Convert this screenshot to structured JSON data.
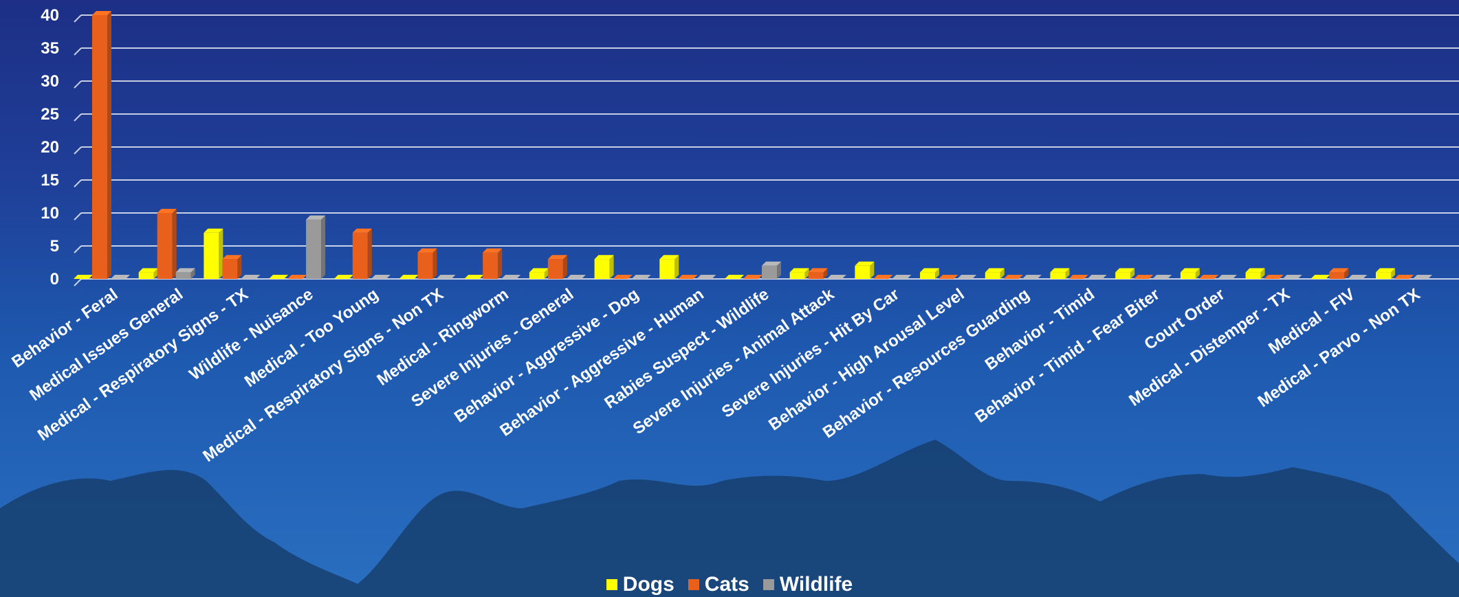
{
  "chart_data": {
    "type": "bar",
    "categories": [
      "Behavior - Feral",
      "Medical Issues General",
      "Medical - Respiratory Signs - TX",
      "Wildlife - Nuisance",
      "Medical - Too Young",
      "Medical - Respiratory Signs - Non TX",
      "Medical - Ringworm",
      "Severe Injuries - General",
      "Behavior - Aggressive - Dog",
      "Behavior - Aggressive - Human",
      "Rabies Suspect - Wildlife",
      "Severe Injuries - Animal Attack",
      "Severe Injuries - Hit By Car",
      "Behavior - High Arousal Level",
      "Behavior - Resources Guarding",
      "Behavior - Timid",
      "Behavior - Timid - Fear Biter",
      "Court Order",
      "Medical - Distemper - TX",
      "Medical - FIV",
      "Medical - Parvo - Non TX"
    ],
    "series": [
      {
        "name": "Dogs",
        "color": "#ffff00",
        "values": [
          0,
          1,
          7,
          0,
          0,
          0,
          0,
          1,
          3,
          3,
          0,
          1,
          2,
          1,
          1,
          1,
          1,
          1,
          1,
          0,
          1
        ]
      },
      {
        "name": "Cats",
        "color": "#e8601c",
        "values": [
          40,
          10,
          3,
          0,
          7,
          4,
          4,
          3,
          0,
          0,
          0,
          1,
          0,
          0,
          0,
          0,
          0,
          0,
          0,
          1,
          0
        ]
      },
      {
        "name": "Wildlife",
        "color": "#9a9a9a",
        "values": [
          0,
          1,
          0,
          9,
          0,
          0,
          0,
          0,
          0,
          0,
          2,
          0,
          0,
          0,
          0,
          0,
          0,
          0,
          0,
          0,
          0
        ]
      }
    ],
    "yticks": [
      "0",
      "5",
      "10",
      "15",
      "20",
      "25",
      "30",
      "35",
      "40"
    ],
    "ylim": [
      0,
      40
    ],
    "grid": true,
    "legend_position": "bottom-center",
    "title": "",
    "xlabel": "",
    "ylabel": ""
  }
}
